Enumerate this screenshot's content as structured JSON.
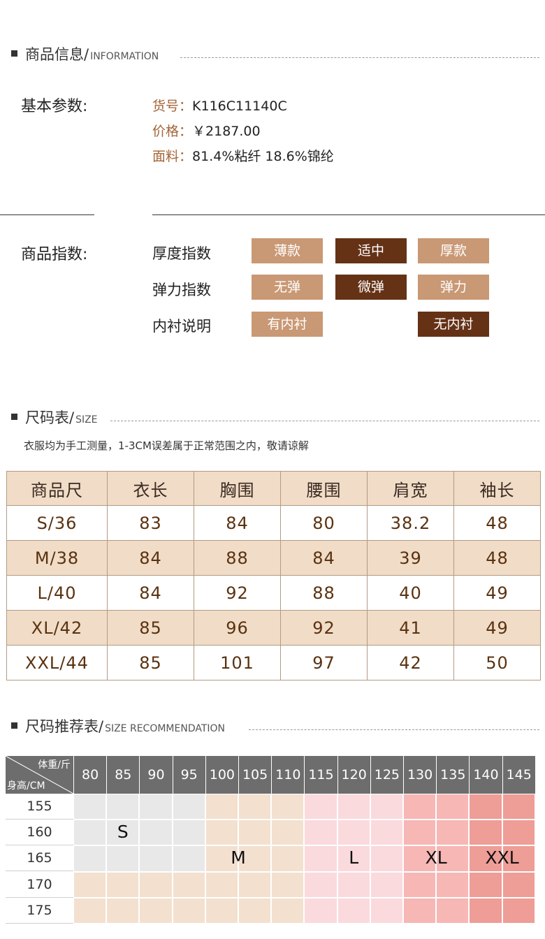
{
  "info_section": {
    "title_cn": "商品信息/",
    "title_en": "INFORMATION"
  },
  "basic": {
    "label": "基本参数:",
    "item_no_key": "货号：",
    "item_no": "K116C11140C",
    "price_key": "价格：",
    "price": "￥2187.00",
    "fabric_key": "面料：",
    "fabric": "81.4%粘纤 18.6%锦纶"
  },
  "index": {
    "label": "商品指数:",
    "rows": [
      {
        "name": "厚度指数",
        "options": [
          "薄款",
          "适中",
          "厚款"
        ],
        "selected": 1
      },
      {
        "name": "弹力指数",
        "options": [
          "无弹",
          "微弹",
          "弹力"
        ],
        "selected": 1
      },
      {
        "name": "内衬说明",
        "options": [
          "有内衬",
          "无内衬"
        ],
        "selected": 1
      }
    ]
  },
  "size_section": {
    "title_cn": "尺码表/",
    "title_en": "SIZE",
    "note": "衣服均为手工测量，1-3CM误差属于正常范围之内，敬请谅解",
    "headers": [
      "商品尺",
      "衣长",
      "胸围",
      "腰围",
      "肩宽",
      "袖长"
    ],
    "rows": [
      [
        "S/36",
        "83",
        "84",
        "80",
        "38.2",
        "48"
      ],
      [
        "M/38",
        "84",
        "88",
        "84",
        "39",
        "48"
      ],
      [
        "L/40",
        "84",
        "92",
        "88",
        "40",
        "49"
      ],
      [
        "XL/42",
        "85",
        "96",
        "92",
        "41",
        "49"
      ],
      [
        "XXL/44",
        "85",
        "101",
        "97",
        "42",
        "50"
      ]
    ]
  },
  "rec_section": {
    "title_cn": "尺码推荐表/",
    "title_en": "SIZE RECOMMENDATION",
    "corner_weight": "体重/斤",
    "corner_height": "身高/CM",
    "weights": [
      "80",
      "85",
      "90",
      "95",
      "100",
      "105",
      "110",
      "115",
      "120",
      "125",
      "130",
      "135",
      "140",
      "145"
    ],
    "heights": [
      "155",
      "160",
      "165",
      "170",
      "175"
    ],
    "labels": {
      "S": "S",
      "M": "M",
      "L": "L",
      "XL": "XL",
      "XXL": "XXL"
    },
    "colors": {
      "grey": "#e9e8e8",
      "beige": "#f3e0cf",
      "pink_light": "#fadadd",
      "pink_mid": "#f6b7b5",
      "pink_dark": "#ee9d97"
    }
  }
}
